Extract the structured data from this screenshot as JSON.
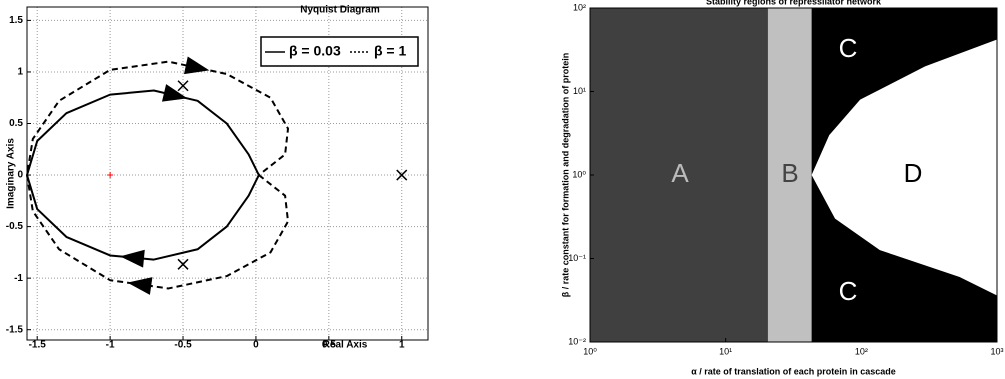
{
  "chart_data": [
    {
      "type": "line",
      "title": "Nyquist Diagram",
      "xlabel": "Real Axis",
      "ylabel": "Imaginary Axis",
      "xlim": [
        -1.57,
        1.18
      ],
      "ylim": [
        -1.6,
        1.63
      ],
      "xticks": [
        -1.5,
        -1,
        -0.5,
        0,
        0.5,
        1
      ],
      "yticks": [
        -1.5,
        -1,
        -0.5,
        0,
        0.5,
        1,
        1.5
      ],
      "grid": true,
      "series": [
        {
          "name": "β = 0.03",
          "color": "#000000",
          "dash": false,
          "x": [
            0.02,
            -0.05,
            -0.2,
            -0.4,
            -0.7,
            -1.0,
            -1.3,
            -1.5,
            -1.57,
            -1.5,
            -1.3,
            -1.0,
            -0.7,
            -0.4,
            -0.2,
            -0.05,
            0.02
          ],
          "values": [
            0,
            -0.2,
            -0.5,
            -0.72,
            -0.82,
            -0.78,
            -0.6,
            -0.33,
            0,
            0.33,
            0.6,
            0.78,
            0.82,
            0.72,
            0.5,
            0.2,
            0
          ]
        },
        {
          "name": "β = 1",
          "color": "#000000",
          "dash": true,
          "x": [
            0.02,
            0.2,
            0.22,
            0.1,
            -0.2,
            -0.6,
            -1.0,
            -1.35,
            -1.53,
            -1.57,
            -1.53,
            -1.35,
            -1.0,
            -0.6,
            -0.2,
            0.1,
            0.22,
            0.2,
            0.02
          ],
          "values": [
            0,
            -0.2,
            -0.45,
            -0.75,
            -0.98,
            -1.1,
            -1.02,
            -0.72,
            -0.35,
            0,
            0.35,
            0.72,
            1.02,
            1.1,
            0.98,
            0.75,
            0.45,
            0.2,
            0
          ]
        }
      ],
      "poles": {
        "x": [
          -0.5,
          -0.5,
          1
        ],
        "y": [
          0.866,
          -0.866,
          0
        ]
      },
      "critical_point": {
        "x": -1,
        "y": 0,
        "color": "#ff0000"
      }
    },
    {
      "type": "region",
      "title": "Stability regions of repressilator network",
      "xlabel": "α / rate of translation of each protein in cascade",
      "ylabel": "β / rate constant for formation and degradation of protein",
      "log_x": true,
      "log_y": true,
      "xlim": [
        1,
        1000
      ],
      "ylim": [
        0.01,
        100
      ],
      "xticks": [
        {
          "value": 1,
          "label": "10⁰"
        },
        {
          "value": 10,
          "label": "10¹"
        },
        {
          "value": 100,
          "label": "10²"
        },
        {
          "value": 1000,
          "label": "10³"
        }
      ],
      "yticks": [
        {
          "value": 0.01,
          "label": "10⁻²"
        },
        {
          "value": 0.1,
          "label": "10⁻¹"
        },
        {
          "value": 1,
          "label": "10⁰"
        },
        {
          "value": 10,
          "label": "10¹"
        },
        {
          "value": 100,
          "label": "10²"
        }
      ],
      "x_boundaries": [
        20.5,
        43
      ],
      "cd_boundary": {
        "alpha": [
          1000,
          295,
          98,
          58,
          43,
          64,
          137,
          530,
          1000
        ],
        "beta": [
          42,
          20,
          8,
          3,
          1,
          0.3,
          0.126,
          0.06,
          0.036
        ]
      },
      "region_colors": [
        "#404040",
        "#c0c0c0",
        "#000000",
        "#ffffff"
      ],
      "region_labels": [
        "A",
        "B",
        "C",
        "C",
        "D"
      ]
    }
  ]
}
